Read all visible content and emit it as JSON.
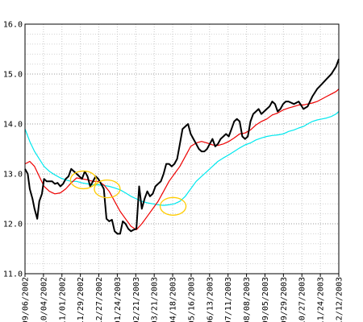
{
  "chart_data": {
    "type": "line",
    "title": "",
    "xlabel": "",
    "ylabel": "",
    "ylim": [
      11.0,
      16.0
    ],
    "yticks": [
      "11.0",
      "12.0",
      "13.0",
      "14.0",
      "15.0",
      "16.0"
    ],
    "x_tick_labels": [
      "09/06/2002",
      "10/04/2002",
      "11/01/2002",
      "11/29/2002",
      "12/27/2002",
      "01/24/2003",
      "02/21/2003",
      "03/21/2003",
      "04/18/2003",
      "05/16/2003",
      "06/13/2003",
      "07/11/2003",
      "08/08/2003",
      "09/05/2003",
      "09/29/2003",
      "10/27/2003",
      "11/24/2003",
      "12/12/2003"
    ],
    "x_start": "2002-09-06",
    "x_end": "2003-12-12",
    "grid": true,
    "series": [
      {
        "color": "#000000",
        "points": [
          [
            "2002-09-06",
            13.1
          ],
          [
            "2002-09-10",
            13.0
          ],
          [
            "2002-09-13",
            12.7
          ],
          [
            "2002-09-17",
            12.5
          ],
          [
            "2002-09-20",
            12.3
          ],
          [
            "2002-09-24",
            12.1
          ],
          [
            "2002-09-27",
            12.45
          ],
          [
            "2002-10-01",
            12.6
          ],
          [
            "2002-10-04",
            12.9
          ],
          [
            "2002-10-08",
            12.85
          ],
          [
            "2002-10-12",
            12.85
          ],
          [
            "2002-10-16",
            12.85
          ],
          [
            "2002-10-20",
            12.8
          ],
          [
            "2002-10-24",
            12.82
          ],
          [
            "2002-10-28",
            12.75
          ],
          [
            "2002-11-01",
            12.8
          ],
          [
            "2002-11-05",
            12.9
          ],
          [
            "2002-11-09",
            12.95
          ],
          [
            "2002-11-13",
            13.1
          ],
          [
            "2002-11-17",
            13.05
          ],
          [
            "2002-11-21",
            13.0
          ],
          [
            "2002-11-25",
            12.95
          ],
          [
            "2002-11-29",
            12.9
          ],
          [
            "2002-12-03",
            13.05
          ],
          [
            "2002-12-07",
            12.95
          ],
          [
            "2002-12-11",
            12.75
          ],
          [
            "2002-12-15",
            12.85
          ],
          [
            "2002-12-19",
            12.95
          ],
          [
            "2002-12-23",
            12.9
          ],
          [
            "2002-12-27",
            12.8
          ],
          [
            "2002-12-31",
            12.7
          ],
          [
            "2003-01-04",
            12.1
          ],
          [
            "2003-01-08",
            12.05
          ],
          [
            "2003-01-12",
            12.08
          ],
          [
            "2003-01-16",
            11.85
          ],
          [
            "2003-01-20",
            11.8
          ],
          [
            "2003-01-24",
            11.8
          ],
          [
            "2003-01-28",
            12.05
          ],
          [
            "2003-02-01",
            12.0
          ],
          [
            "2003-02-05",
            11.9
          ],
          [
            "2003-02-09",
            11.85
          ],
          [
            "2003-02-13",
            11.88
          ],
          [
            "2003-02-17",
            11.9
          ],
          [
            "2003-02-21",
            12.75
          ],
          [
            "2003-02-25",
            12.3
          ],
          [
            "2003-03-01",
            12.5
          ],
          [
            "2003-03-05",
            12.65
          ],
          [
            "2003-03-09",
            12.55
          ],
          [
            "2003-03-13",
            12.6
          ],
          [
            "2003-03-17",
            12.75
          ],
          [
            "2003-03-21",
            12.8
          ],
          [
            "2003-03-25",
            12.85
          ],
          [
            "2003-03-29",
            13.0
          ],
          [
            "2003-04-02",
            13.2
          ],
          [
            "2003-04-06",
            13.2
          ],
          [
            "2003-04-10",
            13.15
          ],
          [
            "2003-04-14",
            13.2
          ],
          [
            "2003-04-18",
            13.3
          ],
          [
            "2003-04-22",
            13.6
          ],
          [
            "2003-04-26",
            13.9
          ],
          [
            "2003-04-30",
            13.95
          ],
          [
            "2003-05-04",
            14.0
          ],
          [
            "2003-05-08",
            13.8
          ],
          [
            "2003-05-12",
            13.7
          ],
          [
            "2003-05-16",
            13.6
          ],
          [
            "2003-05-20",
            13.5
          ],
          [
            "2003-05-24",
            13.45
          ],
          [
            "2003-05-28",
            13.45
          ],
          [
            "2003-06-01",
            13.5
          ],
          [
            "2003-06-05",
            13.6
          ],
          [
            "2003-06-09",
            13.7
          ],
          [
            "2003-06-13",
            13.55
          ],
          [
            "2003-06-17",
            13.6
          ],
          [
            "2003-06-21",
            13.7
          ],
          [
            "2003-06-25",
            13.75
          ],
          [
            "2003-06-29",
            13.8
          ],
          [
            "2003-07-03",
            13.75
          ],
          [
            "2003-07-07",
            13.9
          ],
          [
            "2003-07-11",
            14.05
          ],
          [
            "2003-07-15",
            14.1
          ],
          [
            "2003-07-19",
            14.05
          ],
          [
            "2003-07-23",
            13.75
          ],
          [
            "2003-07-27",
            13.7
          ],
          [
            "2003-07-31",
            13.75
          ],
          [
            "2003-08-04",
            14.05
          ],
          [
            "2003-08-08",
            14.2
          ],
          [
            "2003-08-12",
            14.25
          ],
          [
            "2003-08-16",
            14.3
          ],
          [
            "2003-08-20",
            14.2
          ],
          [
            "2003-08-24",
            14.25
          ],
          [
            "2003-08-28",
            14.3
          ],
          [
            "2003-09-01",
            14.35
          ],
          [
            "2003-09-05",
            14.45
          ],
          [
            "2003-09-09",
            14.4
          ],
          [
            "2003-09-13",
            14.25
          ],
          [
            "2003-09-17",
            14.3
          ],
          [
            "2003-09-21",
            14.4
          ],
          [
            "2003-09-25",
            14.45
          ],
          [
            "2003-09-29",
            14.45
          ],
          [
            "2003-10-07",
            14.4
          ],
          [
            "2003-10-14",
            14.45
          ],
          [
            "2003-10-21",
            14.3
          ],
          [
            "2003-10-27",
            14.35
          ],
          [
            "2003-11-03",
            14.55
          ],
          [
            "2003-11-10",
            14.7
          ],
          [
            "2003-11-17",
            14.8
          ],
          [
            "2003-11-24",
            14.9
          ],
          [
            "2003-12-01",
            15.0
          ],
          [
            "2003-12-08",
            15.15
          ],
          [
            "2003-12-12",
            15.3
          ]
        ]
      },
      {
        "color": "#ee0000",
        "points": [
          [
            "2002-09-06",
            13.2
          ],
          [
            "2002-09-13",
            13.25
          ],
          [
            "2002-09-20",
            13.15
          ],
          [
            "2002-09-27",
            12.95
          ],
          [
            "2002-10-04",
            12.75
          ],
          [
            "2002-10-12",
            12.65
          ],
          [
            "2002-10-20",
            12.6
          ],
          [
            "2002-10-28",
            12.62
          ],
          [
            "2002-11-05",
            12.7
          ],
          [
            "2002-11-13",
            12.82
          ],
          [
            "2002-11-21",
            12.92
          ],
          [
            "2002-11-29",
            12.9
          ],
          [
            "2002-12-07",
            12.88
          ],
          [
            "2002-12-15",
            12.85
          ],
          [
            "2002-12-23",
            12.85
          ],
          [
            "2002-12-31",
            12.78
          ],
          [
            "2003-01-08",
            12.65
          ],
          [
            "2003-01-16",
            12.45
          ],
          [
            "2003-01-24",
            12.25
          ],
          [
            "2003-02-01",
            12.1
          ],
          [
            "2003-02-09",
            11.95
          ],
          [
            "2003-02-17",
            11.88
          ],
          [
            "2003-02-25",
            12.0
          ],
          [
            "2003-03-05",
            12.15
          ],
          [
            "2003-03-13",
            12.3
          ],
          [
            "2003-03-21",
            12.45
          ],
          [
            "2003-03-29",
            12.65
          ],
          [
            "2003-04-06",
            12.85
          ],
          [
            "2003-04-14",
            13.0
          ],
          [
            "2003-04-22",
            13.15
          ],
          [
            "2003-04-30",
            13.35
          ],
          [
            "2003-05-08",
            13.55
          ],
          [
            "2003-05-16",
            13.62
          ],
          [
            "2003-05-24",
            13.65
          ],
          [
            "2003-06-01",
            13.62
          ],
          [
            "2003-06-09",
            13.58
          ],
          [
            "2003-06-17",
            13.57
          ],
          [
            "2003-06-25",
            13.6
          ],
          [
            "2003-07-03",
            13.65
          ],
          [
            "2003-07-11",
            13.72
          ],
          [
            "2003-07-19",
            13.8
          ],
          [
            "2003-07-27",
            13.82
          ],
          [
            "2003-08-04",
            13.88
          ],
          [
            "2003-08-12",
            13.98
          ],
          [
            "2003-08-20",
            14.05
          ],
          [
            "2003-08-28",
            14.1
          ],
          [
            "2003-09-05",
            14.18
          ],
          [
            "2003-09-13",
            14.22
          ],
          [
            "2003-09-21",
            14.28
          ],
          [
            "2003-09-29",
            14.32
          ],
          [
            "2003-10-07",
            14.35
          ],
          [
            "2003-10-14",
            14.38
          ],
          [
            "2003-10-21",
            14.38
          ],
          [
            "2003-10-27",
            14.4
          ],
          [
            "2003-11-03",
            14.42
          ],
          [
            "2003-11-10",
            14.45
          ],
          [
            "2003-11-17",
            14.5
          ],
          [
            "2003-11-24",
            14.55
          ],
          [
            "2003-12-01",
            14.6
          ],
          [
            "2003-12-08",
            14.65
          ],
          [
            "2003-12-12",
            14.7
          ]
        ]
      },
      {
        "color": "#00e8ee",
        "points": [
          [
            "2002-09-06",
            13.9
          ],
          [
            "2002-09-13",
            13.65
          ],
          [
            "2002-09-20",
            13.45
          ],
          [
            "2002-09-27",
            13.3
          ],
          [
            "2002-10-04",
            13.15
          ],
          [
            "2002-10-12",
            13.05
          ],
          [
            "2002-10-20",
            12.98
          ],
          [
            "2002-10-28",
            12.92
          ],
          [
            "2002-11-05",
            12.88
          ],
          [
            "2002-11-13",
            12.85
          ],
          [
            "2002-11-21",
            12.85
          ],
          [
            "2002-11-29",
            12.82
          ],
          [
            "2002-12-07",
            12.8
          ],
          [
            "2002-12-15",
            12.78
          ],
          [
            "2002-12-23",
            12.78
          ],
          [
            "2002-12-31",
            12.77
          ],
          [
            "2003-01-08",
            12.75
          ],
          [
            "2003-01-16",
            12.72
          ],
          [
            "2003-01-24",
            12.68
          ],
          [
            "2003-02-01",
            12.62
          ],
          [
            "2003-02-09",
            12.55
          ],
          [
            "2003-02-17",
            12.5
          ],
          [
            "2003-02-25",
            12.45
          ],
          [
            "2003-03-05",
            12.42
          ],
          [
            "2003-03-13",
            12.4
          ],
          [
            "2003-03-21",
            12.38
          ],
          [
            "2003-03-29",
            12.37
          ],
          [
            "2003-04-06",
            12.38
          ],
          [
            "2003-04-14",
            12.4
          ],
          [
            "2003-04-22",
            12.45
          ],
          [
            "2003-04-30",
            12.55
          ],
          [
            "2003-05-08",
            12.7
          ],
          [
            "2003-05-16",
            12.85
          ],
          [
            "2003-05-24",
            12.95
          ],
          [
            "2003-06-01",
            13.05
          ],
          [
            "2003-06-09",
            13.15
          ],
          [
            "2003-06-17",
            13.25
          ],
          [
            "2003-06-25",
            13.32
          ],
          [
            "2003-07-03",
            13.38
          ],
          [
            "2003-07-11",
            13.45
          ],
          [
            "2003-07-19",
            13.52
          ],
          [
            "2003-07-27",
            13.58
          ],
          [
            "2003-08-04",
            13.62
          ],
          [
            "2003-08-12",
            13.68
          ],
          [
            "2003-08-20",
            13.72
          ],
          [
            "2003-08-28",
            13.75
          ],
          [
            "2003-09-05",
            13.77
          ],
          [
            "2003-09-13",
            13.78
          ],
          [
            "2003-09-21",
            13.8
          ],
          [
            "2003-09-29",
            13.85
          ],
          [
            "2003-10-07",
            13.88
          ],
          [
            "2003-10-14",
            13.92
          ],
          [
            "2003-10-21",
            13.95
          ],
          [
            "2003-10-27",
            14.0
          ],
          [
            "2003-11-03",
            14.05
          ],
          [
            "2003-11-10",
            14.08
          ],
          [
            "2003-11-17",
            14.1
          ],
          [
            "2003-11-24",
            14.12
          ],
          [
            "2003-12-01",
            14.15
          ],
          [
            "2003-12-08",
            14.2
          ],
          [
            "2003-12-12",
            14.25
          ]
        ]
      }
    ],
    "annotations": [
      {
        "shape": "ellipse",
        "color": "#ffcc00",
        "center": [
          "2002-12-01",
          12.88
        ]
      },
      {
        "shape": "ellipse",
        "color": "#ffcc00",
        "center": [
          "2003-01-05",
          12.7
        ]
      },
      {
        "shape": "ellipse",
        "color": "#ffcc00",
        "center": [
          "2003-04-12",
          12.35
        ]
      }
    ]
  }
}
